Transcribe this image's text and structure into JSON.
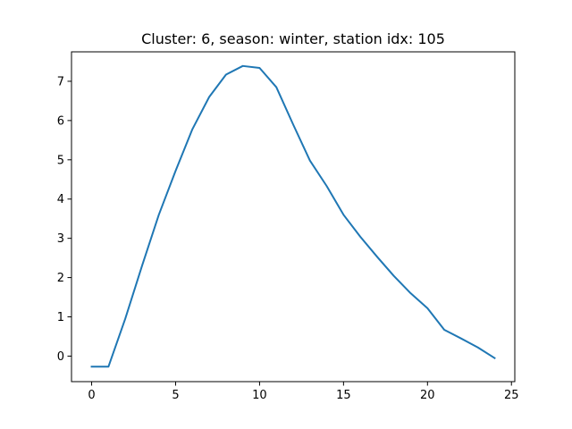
{
  "chart_data": {
    "type": "line",
    "title": "Cluster: 6, season: winter, station idx: 105",
    "xlabel": "",
    "ylabel": "",
    "xlim": [
      -1.2,
      25.2
    ],
    "ylim": [
      -0.65,
      7.75
    ],
    "x_ticks": [
      0,
      5,
      10,
      15,
      20,
      25
    ],
    "y_ticks": [
      0,
      1,
      2,
      3,
      4,
      5,
      6,
      7
    ],
    "grid": false,
    "series": [
      {
        "color": "#1f77b4",
        "x": [
          0,
          1,
          2,
          3,
          4,
          5,
          6,
          7,
          8,
          9,
          10,
          11,
          12,
          13,
          14,
          15,
          16,
          17,
          18,
          19,
          20,
          21,
          22,
          23,
          24
        ],
        "y": [
          -0.27,
          -0.27,
          0.95,
          2.3,
          3.6,
          4.72,
          5.78,
          6.6,
          7.17,
          7.39,
          7.34,
          6.85,
          5.9,
          4.98,
          4.33,
          3.6,
          3.04,
          2.53,
          2.04,
          1.6,
          1.22,
          0.67,
          0.45,
          0.22,
          -0.05
        ]
      }
    ]
  }
}
